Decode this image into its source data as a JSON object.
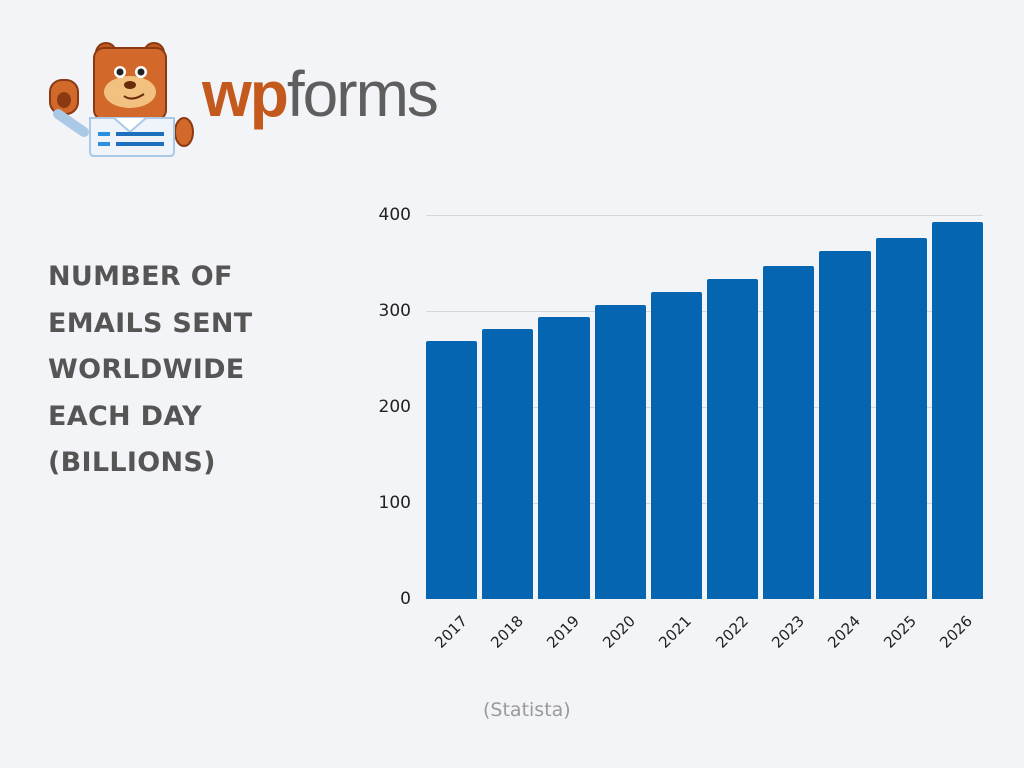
{
  "logo": {
    "wp": "wp",
    "forms": "forms",
    "mascot": "bear-mascot"
  },
  "title_lines": [
    "NUMBER OF",
    "EMAILS SENT",
    "WORLDWIDE",
    "EACH DAY",
    "(BILLIONS)"
  ],
  "source": "(Statista)",
  "colors": {
    "bar": "#0565b0",
    "title": "#555555",
    "brand_orange": "#c4591e",
    "brand_gray": "#5e5e5e",
    "background": "#f3f4f7"
  },
  "chart_data": {
    "type": "bar",
    "title": "Number of emails sent worldwide each day (billions)",
    "xlabel": "",
    "ylabel": "",
    "categories": [
      "2017",
      "2018",
      "2019",
      "2020",
      "2021",
      "2022",
      "2023",
      "2024",
      "2025",
      "2026"
    ],
    "values": [
      269,
      281,
      294,
      306,
      320,
      333,
      347,
      362,
      376,
      393
    ],
    "yticks": [
      0,
      100,
      200,
      300,
      400
    ],
    "ylim": [
      0,
      400
    ],
    "grid": true,
    "legend": null,
    "source": "(Statista)"
  }
}
